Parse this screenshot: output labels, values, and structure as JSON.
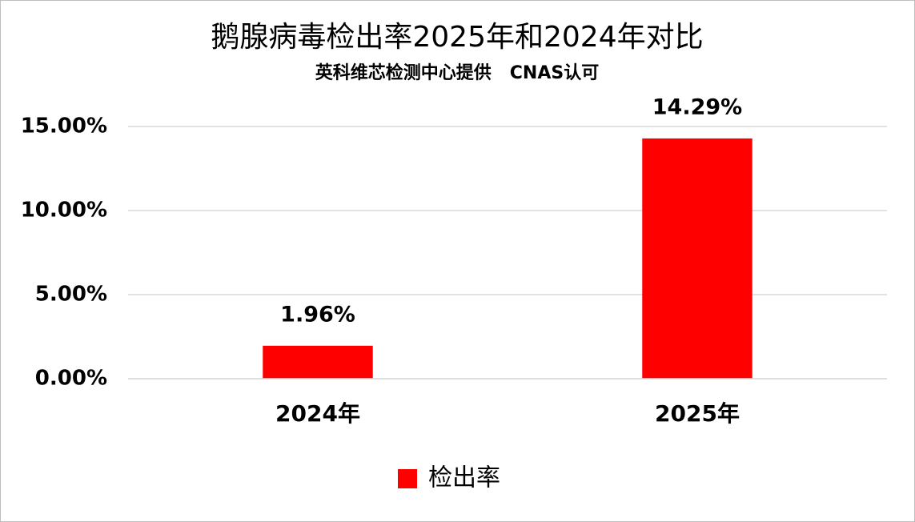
{
  "chart_data": {
    "type": "bar",
    "title": "鹅腺病毒检出率2025年和2024年对比",
    "subtitle": "英科维芯检测中心提供   CNAS认可",
    "categories": [
      "2024年",
      "2025年"
    ],
    "series": [
      {
        "name": "检出率",
        "color": "#ff0000",
        "values": [
          1.96,
          14.29
        ],
        "value_labels": [
          "1.96%",
          "14.29%"
        ]
      }
    ],
    "ylim": [
      0,
      15
    ],
    "yticks": [
      {
        "value": 0,
        "label": "0.00%"
      },
      {
        "value": 5,
        "label": "5.00%"
      },
      {
        "value": 10,
        "label": "10.00%"
      },
      {
        "value": 15,
        "label": "15.00%"
      }
    ],
    "grid": true,
    "legend": "bottom"
  }
}
